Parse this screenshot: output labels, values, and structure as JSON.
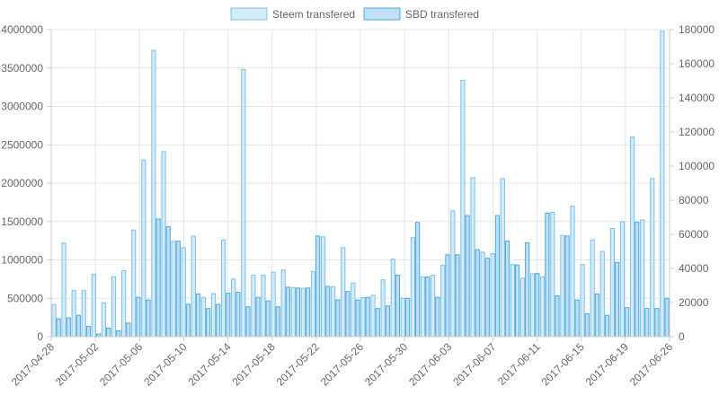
{
  "chart_data": {
    "type": "bar",
    "legend_position": "top",
    "grid": true,
    "series": [
      {
        "name": "Steem transfered",
        "axis": "left",
        "color": "#7cc0e6",
        "fill": "#d4ebfa",
        "values": [
          420000,
          1220000,
          600000,
          600000,
          810000,
          440000,
          780000,
          860000,
          1390000,
          2300000,
          3730000,
          2410000,
          1240000,
          1160000,
          1310000,
          510000,
          560000,
          1260000,
          750000,
          3480000,
          800000,
          800000,
          840000,
          870000,
          640000,
          630000,
          850000,
          1300000,
          650000,
          1160000,
          700000,
          510000,
          540000,
          740000,
          1010000,
          500000,
          1290000,
          780000,
          800000,
          930000,
          1640000,
          3340000,
          2070000,
          1100000,
          1080000,
          2060000,
          940000,
          760000,
          820000,
          780000,
          1620000,
          1320000,
          1700000,
          940000,
          1260000,
          1110000,
          1410000,
          1500000,
          2600000,
          1520000,
          2060000,
          3980000
        ]
      },
      {
        "name": "SBD transfered",
        "axis": "right",
        "color": "#4aa8dc",
        "fill": "#bedff5",
        "values": [
          10500,
          11000,
          12500,
          6000,
          1500,
          5000,
          3500,
          8000,
          23000,
          21500,
          69000,
          64500,
          56000,
          19000,
          25000,
          16500,
          19000,
          25500,
          26000,
          17500,
          23000,
          21000,
          17500,
          29000,
          28500,
          28500,
          59000,
          29500,
          21500,
          26500,
          21500,
          23000,
          16500,
          18000,
          36000,
          22500,
          67000,
          35000,
          23000,
          48000,
          48000,
          71000,
          51000,
          46000,
          71000,
          56000,
          42000,
          55000,
          37000,
          72500,
          24000,
          59000,
          21500,
          13500,
          25000,
          12500,
          43500,
          17000,
          67000,
          16500,
          16500,
          22500
        ]
      }
    ],
    "x_tick_labels": [
      "2017-04-28",
      "2017-05-02",
      "2017-05-06",
      "2017-05-10",
      "2017-05-14",
      "2017-05-18",
      "2017-05-22",
      "2017-05-26",
      "2017-05-30",
      "2017-06-03",
      "2017-06-07",
      "2017-06-11",
      "2017-06-15",
      "2017-06-19",
      "2017-06-26"
    ],
    "y_left": {
      "min": 0,
      "max": 4000000,
      "ticks": [
        "0",
        "500000",
        "1000000",
        "1500000",
        "2000000",
        "2500000",
        "3000000",
        "3500000",
        "4000000"
      ]
    },
    "y_right": {
      "min": 0,
      "max": 180000,
      "ticks": [
        "0",
        "20000",
        "40000",
        "60000",
        "80000",
        "100000",
        "120000",
        "140000",
        "160000",
        "180000"
      ]
    }
  }
}
